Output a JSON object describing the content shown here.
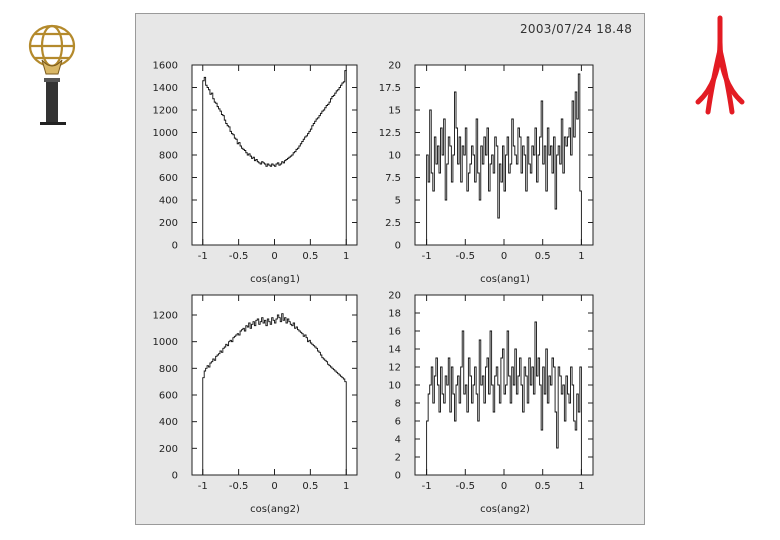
{
  "timestamp": "2003/07/24   18.48",
  "logos": {
    "left": "atlas-globe-logo-icon",
    "right": "university-logo-icon"
  },
  "colors": {
    "panel": "#e7e7e7",
    "frame": "#9a9a9a",
    "line": "#111111",
    "right_logo": "#e31b23",
    "left_logo": "#c8a040"
  },
  "chart_data": [
    {
      "type": "line",
      "xlabel": "cos(ang1)",
      "xlim": [
        -1.15,
        1.15
      ],
      "ylim": [
        0,
        1600
      ],
      "xticks": [
        -1,
        -0.5,
        0,
        0.5,
        1
      ],
      "xtick_labels": [
        "-1",
        "-0.5",
        "0",
        "0.5",
        "1"
      ],
      "yticks": [
        0,
        200,
        400,
        600,
        800,
        1000,
        1200,
        1400,
        1600
      ],
      "ytick_labels": [
        "0",
        "200",
        "400",
        "600",
        "800",
        "1000",
        "1200",
        "1400",
        "1600"
      ],
      "x_range": [
        -1,
        1
      ],
      "values": [
        1460,
        1490,
        1420,
        1400,
        1380,
        1340,
        1350,
        1300,
        1270,
        1260,
        1230,
        1210,
        1190,
        1160,
        1150,
        1110,
        1080,
        1060,
        1050,
        1010,
        990,
        980,
        950,
        940,
        900,
        910,
        880,
        860,
        850,
        840,
        820,
        800,
        810,
        790,
        770,
        780,
        750,
        760,
        740,
        730,
        720,
        740,
        730,
        720,
        700,
        720,
        710,
        700,
        720,
        710,
        700,
        720,
        730,
        710,
        720,
        740,
        730,
        750,
        760,
        770,
        780,
        790,
        800,
        820,
        830,
        850,
        860,
        880,
        900,
        920,
        940,
        960,
        970,
        990,
        1010,
        1030,
        1060,
        1080,
        1100,
        1120,
        1130,
        1150,
        1170,
        1190,
        1200,
        1220,
        1240,
        1250,
        1270,
        1300,
        1320,
        1330,
        1350,
        1370,
        1380,
        1400,
        1420,
        1440,
        1450,
        1550
      ]
    },
    {
      "type": "line",
      "xlabel": "cos(ang1)",
      "xlim": [
        -1.15,
        1.15
      ],
      "ylim": [
        0,
        20
      ],
      "xticks": [
        -1,
        -0.5,
        0,
        0.5,
        1
      ],
      "xtick_labels": [
        "-1",
        "-0.5",
        "0",
        "0.5",
        "1"
      ],
      "yticks": [
        0,
        2.5,
        5,
        7.5,
        10,
        12.5,
        15,
        17.5,
        20
      ],
      "ytick_labels": [
        "0",
        "2.5",
        "5",
        "7.5",
        "10",
        "12.5",
        "15",
        "17.5",
        "20"
      ],
      "x_range": [
        -1,
        1
      ],
      "values": [
        10,
        7,
        15,
        8,
        6,
        12,
        9,
        11,
        8,
        13,
        10,
        14,
        5,
        9,
        12,
        11,
        7,
        10,
        17,
        13,
        9,
        12,
        7,
        11,
        10,
        13,
        6,
        8,
        9,
        11,
        10,
        7,
        14,
        8,
        5,
        11,
        9,
        12,
        10,
        13,
        6,
        9,
        10,
        8,
        12,
        11,
        3,
        9,
        7,
        11,
        6,
        10,
        12,
        8,
        9,
        14,
        11,
        10,
        9,
        13,
        12,
        8,
        11,
        10,
        6,
        12,
        9,
        8,
        11,
        10,
        13,
        7,
        10,
        12,
        16,
        9,
        11,
        6,
        13,
        10,
        11,
        8,
        12,
        4,
        10,
        11,
        9,
        14,
        8,
        12,
        11,
        12,
        13,
        10,
        16,
        12,
        17,
        14,
        19,
        6
      ]
    },
    {
      "type": "line",
      "xlabel": "cos(ang2)",
      "xlim": [
        -1.15,
        1.15
      ],
      "ylim": [
        0,
        1350
      ],
      "xticks": [
        -1,
        -0.5,
        0,
        0.5,
        1
      ],
      "xtick_labels": [
        "-1",
        "-0.5",
        "0",
        "0.5",
        "1"
      ],
      "yticks": [
        0,
        200,
        400,
        600,
        800,
        1000,
        1200
      ],
      "ytick_labels": [
        "0",
        "200",
        "400",
        "600",
        "800",
        "1000",
        "1200"
      ],
      "x_range": [
        -1,
        1
      ],
      "values": [
        730,
        780,
        800,
        820,
        810,
        840,
        850,
        870,
        860,
        890,
        900,
        910,
        930,
        920,
        950,
        960,
        980,
        970,
        1000,
        1010,
        1000,
        1030,
        1040,
        1050,
        1060,
        1050,
        1080,
        1090,
        1100,
        1080,
        1120,
        1110,
        1140,
        1100,
        1130,
        1150,
        1120,
        1160,
        1170,
        1130,
        1150,
        1180,
        1140,
        1160,
        1120,
        1170,
        1150,
        1130,
        1180,
        1160,
        1140,
        1170,
        1200,
        1180,
        1150,
        1210,
        1160,
        1180,
        1140,
        1170,
        1150,
        1130,
        1120,
        1140,
        1100,
        1110,
        1090,
        1080,
        1070,
        1060,
        1040,
        1050,
        1030,
        1000,
        1010,
        990,
        980,
        970,
        960,
        950,
        930,
        920,
        900,
        880,
        870,
        860,
        850,
        830,
        820,
        810,
        800,
        790,
        780,
        770,
        760,
        750,
        740,
        730,
        720,
        700
      ]
    },
    {
      "type": "line",
      "xlabel": "cos(ang2)",
      "xlim": [
        -1.15,
        1.15
      ],
      "ylim": [
        0,
        20
      ],
      "xticks": [
        -1,
        -0.5,
        0,
        0.5,
        1
      ],
      "xtick_labels": [
        "-1",
        "-0.5",
        "0",
        "0.5",
        "1"
      ],
      "yticks": [
        0,
        2,
        4,
        6,
        8,
        10,
        12,
        14,
        16,
        18,
        20
      ],
      "ytick_labels": [
        "0",
        "2",
        "4",
        "6",
        "8",
        "10",
        "12",
        "14",
        "16",
        "18",
        "20"
      ],
      "x_range": [
        -1,
        1
      ],
      "values": [
        6,
        9,
        10,
        12,
        8,
        11,
        13,
        10,
        7,
        12,
        9,
        8,
        11,
        10,
        13,
        7,
        12,
        9,
        6,
        10,
        11,
        8,
        12,
        16,
        9,
        10,
        7,
        13,
        11,
        8,
        10,
        12,
        9,
        6,
        15,
        10,
        11,
        8,
        12,
        13,
        9,
        16,
        10,
        7,
        11,
        12,
        10,
        8,
        13,
        14,
        9,
        10,
        16,
        11,
        8,
        12,
        10,
        14,
        9,
        11,
        13,
        10,
        7,
        12,
        11,
        8,
        13,
        10,
        12,
        9,
        17,
        11,
        13,
        10,
        5,
        12,
        9,
        14,
        8,
        11,
        10,
        13,
        12,
        7,
        3,
        12,
        11,
        9,
        10,
        6,
        11,
        9,
        8,
        12,
        10,
        6,
        5,
        9,
        7,
        12
      ]
    }
  ]
}
